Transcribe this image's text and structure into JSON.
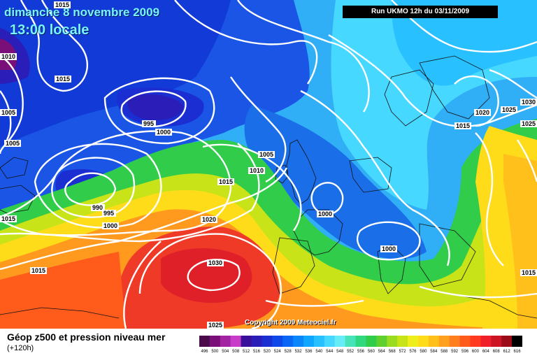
{
  "header": {
    "date_title": "dimanche 8 novembre 2009",
    "time_title": "13:00 locale",
    "run_label": "Run UKMO 12h du 03/11/2009"
  },
  "copyright": "Copyright 2009 Meteociel.fr",
  "footer": {
    "title": "Géop z500 et pression niveau mer",
    "subtitle": "(+120h)"
  },
  "legend": {
    "values": [
      "496",
      "500",
      "504",
      "508",
      "512",
      "516",
      "520",
      "524",
      "528",
      "532",
      "536",
      "540",
      "544",
      "548",
      "552",
      "556",
      "560",
      "564",
      "568",
      "572",
      "576",
      "580",
      "584",
      "588",
      "592",
      "596",
      "600",
      "604",
      "608",
      "612",
      "616"
    ],
    "colors": [
      "#4a0a4a",
      "#7a0f7a",
      "#a324a3",
      "#c83cc8",
      "#3a0f9a",
      "#2a1db8",
      "#1a2ed1",
      "#0f48e8",
      "#0a66f5",
      "#0a86fa",
      "#10a6ff",
      "#28c0ff",
      "#46d8ff",
      "#66ecf5",
      "#48e3b8",
      "#30d880",
      "#30cc4a",
      "#60d030",
      "#99dc20",
      "#c8e418",
      "#f0ee1a",
      "#ffdc1a",
      "#ffc01c",
      "#ffa01e",
      "#ff7e1e",
      "#ff5c1c",
      "#ff3a20",
      "#f0202a",
      "#cc1424",
      "#9a0c18",
      "#000000"
    ]
  },
  "isobar_labels": [
    {
      "text": "1015"
    },
    {
      "text": "1010"
    },
    {
      "text": "1015"
    },
    {
      "text": "1005"
    },
    {
      "text": "1005"
    },
    {
      "text": "1015"
    },
    {
      "text": "995"
    },
    {
      "text": "1000"
    },
    {
      "text": "990"
    },
    {
      "text": "995"
    },
    {
      "text": "1000"
    },
    {
      "text": "1015"
    },
    {
      "text": "1020"
    },
    {
      "text": "1005"
    },
    {
      "text": "1010"
    },
    {
      "text": "1015"
    },
    {
      "text": "1020"
    },
    {
      "text": "1030"
    },
    {
      "text": "1020"
    },
    {
      "text": "1025"
    },
    {
      "text": "1000"
    },
    {
      "text": "1000"
    },
    {
      "text": "1020"
    },
    {
      "text": "1025"
    },
    {
      "text": "1015"
    },
    {
      "text": "1030"
    },
    {
      "text": "1025"
    },
    {
      "text": "1015"
    }
  ]
}
